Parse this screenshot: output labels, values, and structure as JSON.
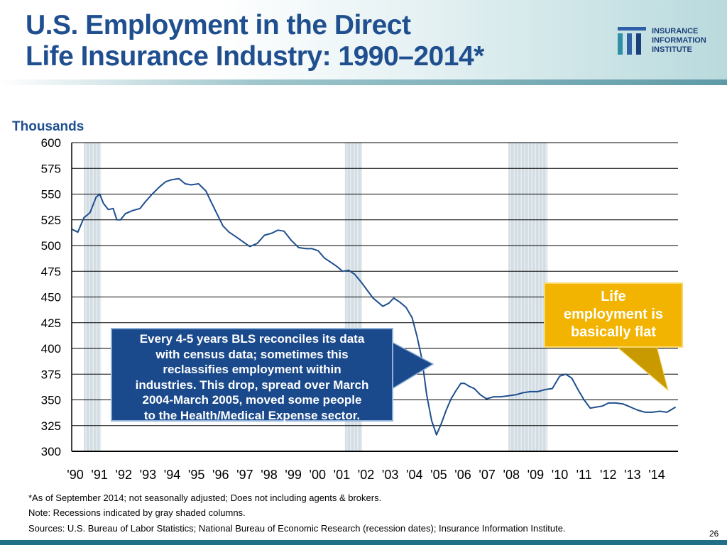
{
  "header": {
    "title_line1": "U.S. Employment in the Direct",
    "title_line2": "Life Insurance Industry: 1990–2014*",
    "logo": {
      "line1": "INSURANCE",
      "line2": "INFORMATION",
      "line3": "INSTITUTE"
    }
  },
  "colors": {
    "title": "#1f4f8f",
    "line": "#1f4f8f",
    "callout_blue": "#1b4a8c",
    "callout_gold": "#f2b400",
    "recession": "#d3dde3"
  },
  "chart_data": {
    "type": "line",
    "title": "",
    "ylabel": "Thousands",
    "xlabel": "",
    "ylim": [
      300,
      600
    ],
    "xlim": [
      1990,
      2014.85
    ],
    "yticks": [
      "300",
      "325",
      "350",
      "375",
      "400",
      "425",
      "450",
      "475",
      "500",
      "525",
      "550",
      "575",
      "600"
    ],
    "xticks": [
      "'90",
      "'91",
      "'92",
      "'93",
      "'94",
      "'95",
      "'96",
      "'97",
      "'98",
      "'99",
      "'00",
      "'01",
      "'02",
      "'03",
      "'04",
      "'05",
      "'06",
      "'07",
      "'08",
      "'09",
      "'10",
      "'11",
      "'12",
      "'13",
      "'14"
    ],
    "grid": true,
    "recessions": [
      {
        "start": 1990.5,
        "end": 1991.2
      },
      {
        "start": 2001.2,
        "end": 2001.9
      },
      {
        "start": 2007.9,
        "end": 2009.5
      }
    ],
    "series": [
      {
        "x": [
          1990.0,
          1990.25,
          1990.5,
          1990.75,
          1991.0,
          1991.15,
          1991.3,
          1991.5,
          1991.7,
          1991.85,
          1992.0,
          1992.2,
          1992.5,
          1992.8,
          1993.0,
          1993.3,
          1993.6,
          1993.85,
          1994.1,
          1994.4,
          1994.65,
          1994.9,
          1995.2,
          1995.5,
          1995.7,
          1995.95,
          1996.2,
          1996.45,
          1996.7,
          1997.0,
          1997.3,
          1997.6,
          1997.9,
          1998.2,
          1998.45,
          1998.7,
          1999.0,
          1999.3,
          1999.6,
          1999.85,
          2000.1,
          2000.35,
          2000.6,
          2000.85,
          2001.1,
          2001.35,
          2001.6,
          2001.85,
          2002.1,
          2002.35,
          2002.55,
          2002.75,
          2003.0,
          2003.2,
          2003.45,
          2003.7,
          2003.95,
          2004.15,
          2004.35,
          2004.55,
          2004.75,
          2004.95,
          2005.15,
          2005.35,
          2005.55,
          2005.75,
          2005.95,
          2006.1,
          2006.3,
          2006.5,
          2006.75,
          2007.0,
          2007.3,
          2007.6,
          2007.9,
          2008.2,
          2008.5,
          2008.8,
          2009.1,
          2009.4,
          2009.7,
          2010.0,
          2010.25,
          2010.5,
          2010.75,
          2011.0,
          2011.25,
          2011.5,
          2011.75,
          2012.0,
          2012.3,
          2012.6,
          2012.9,
          2013.2,
          2013.5,
          2013.8,
          2014.1,
          2014.4,
          2014.75
        ],
        "values": [
          516,
          513,
          527,
          532,
          547,
          550,
          541,
          535,
          536,
          525,
          525,
          531,
          534,
          536,
          542,
          550,
          557,
          562,
          564,
          565,
          560,
          559,
          560,
          553,
          543,
          531,
          519,
          513,
          509,
          504,
          499,
          502,
          510,
          512,
          515,
          514,
          505,
          498,
          497,
          497,
          495,
          488,
          484,
          480,
          475,
          476,
          472,
          465,
          457,
          449,
          445,
          441,
          444,
          449,
          445,
          440,
          430,
          412,
          390,
          355,
          330,
          316,
          327,
          340,
          351,
          359,
          366,
          366,
          363,
          361,
          355,
          351,
          353,
          353,
          354,
          355,
          357,
          358,
          358,
          360,
          361,
          373,
          375,
          371,
          360,
          350,
          342,
          343,
          344,
          347,
          347,
          346,
          343,
          340,
          338,
          338,
          339,
          338,
          343
        ]
      }
    ],
    "annotations": [
      "Every 4-5 years BLS reconciles its data with census data; sometimes this reclassifies employment within industries. This drop, spread over March 2004-March 2005, moved some people to the Health/Medical Expense sector.",
      "Life employment is basically flat"
    ]
  },
  "callouts": {
    "left": [
      "Every 4-5 years BLS reconciles its data",
      "with census data; sometimes this",
      "reclassifies employment within",
      "industries. This drop, spread over March",
      "2004-March 2005, moved some people",
      "to the Health/Medical Expense sector."
    ],
    "right": [
      "Life",
      "employment is",
      "basically flat"
    ]
  },
  "notes": {
    "line1": "*As of September 2014; not seasonally adjusted; Does not including agents & brokers.",
    "line2": "Note: Recessions indicated by gray shaded columns.",
    "line3": "Sources: U.S. Bureau of Labor Statistics;  National Bureau of Economic Research (recession dates); Insurance Information Institute."
  },
  "page_number": "26"
}
